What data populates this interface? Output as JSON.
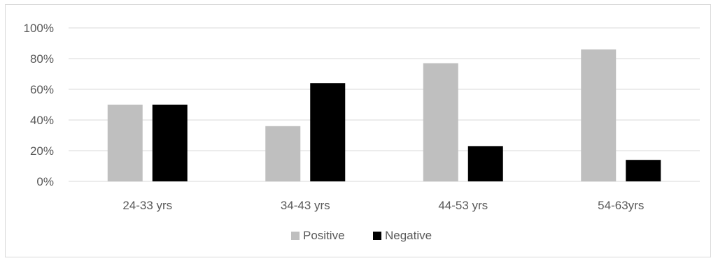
{
  "chart_data": {
    "type": "bar",
    "categories": [
      "24-33 yrs",
      "34-43 yrs",
      "44-53 yrs",
      "54-63yrs"
    ],
    "series": [
      {
        "name": "Positive",
        "color": "#bfbfbf",
        "values": [
          50,
          36,
          77,
          86
        ]
      },
      {
        "name": "Negative",
        "color": "#000000",
        "values": [
          50,
          64,
          23,
          14
        ]
      }
    ],
    "yticks": [
      "0%",
      "20%",
      "40%",
      "60%",
      "80%",
      "100%"
    ],
    "ylim": [
      0,
      100
    ],
    "grid": true,
    "legend_position": "bottom",
    "gridline_color": "#d9d9d9"
  }
}
